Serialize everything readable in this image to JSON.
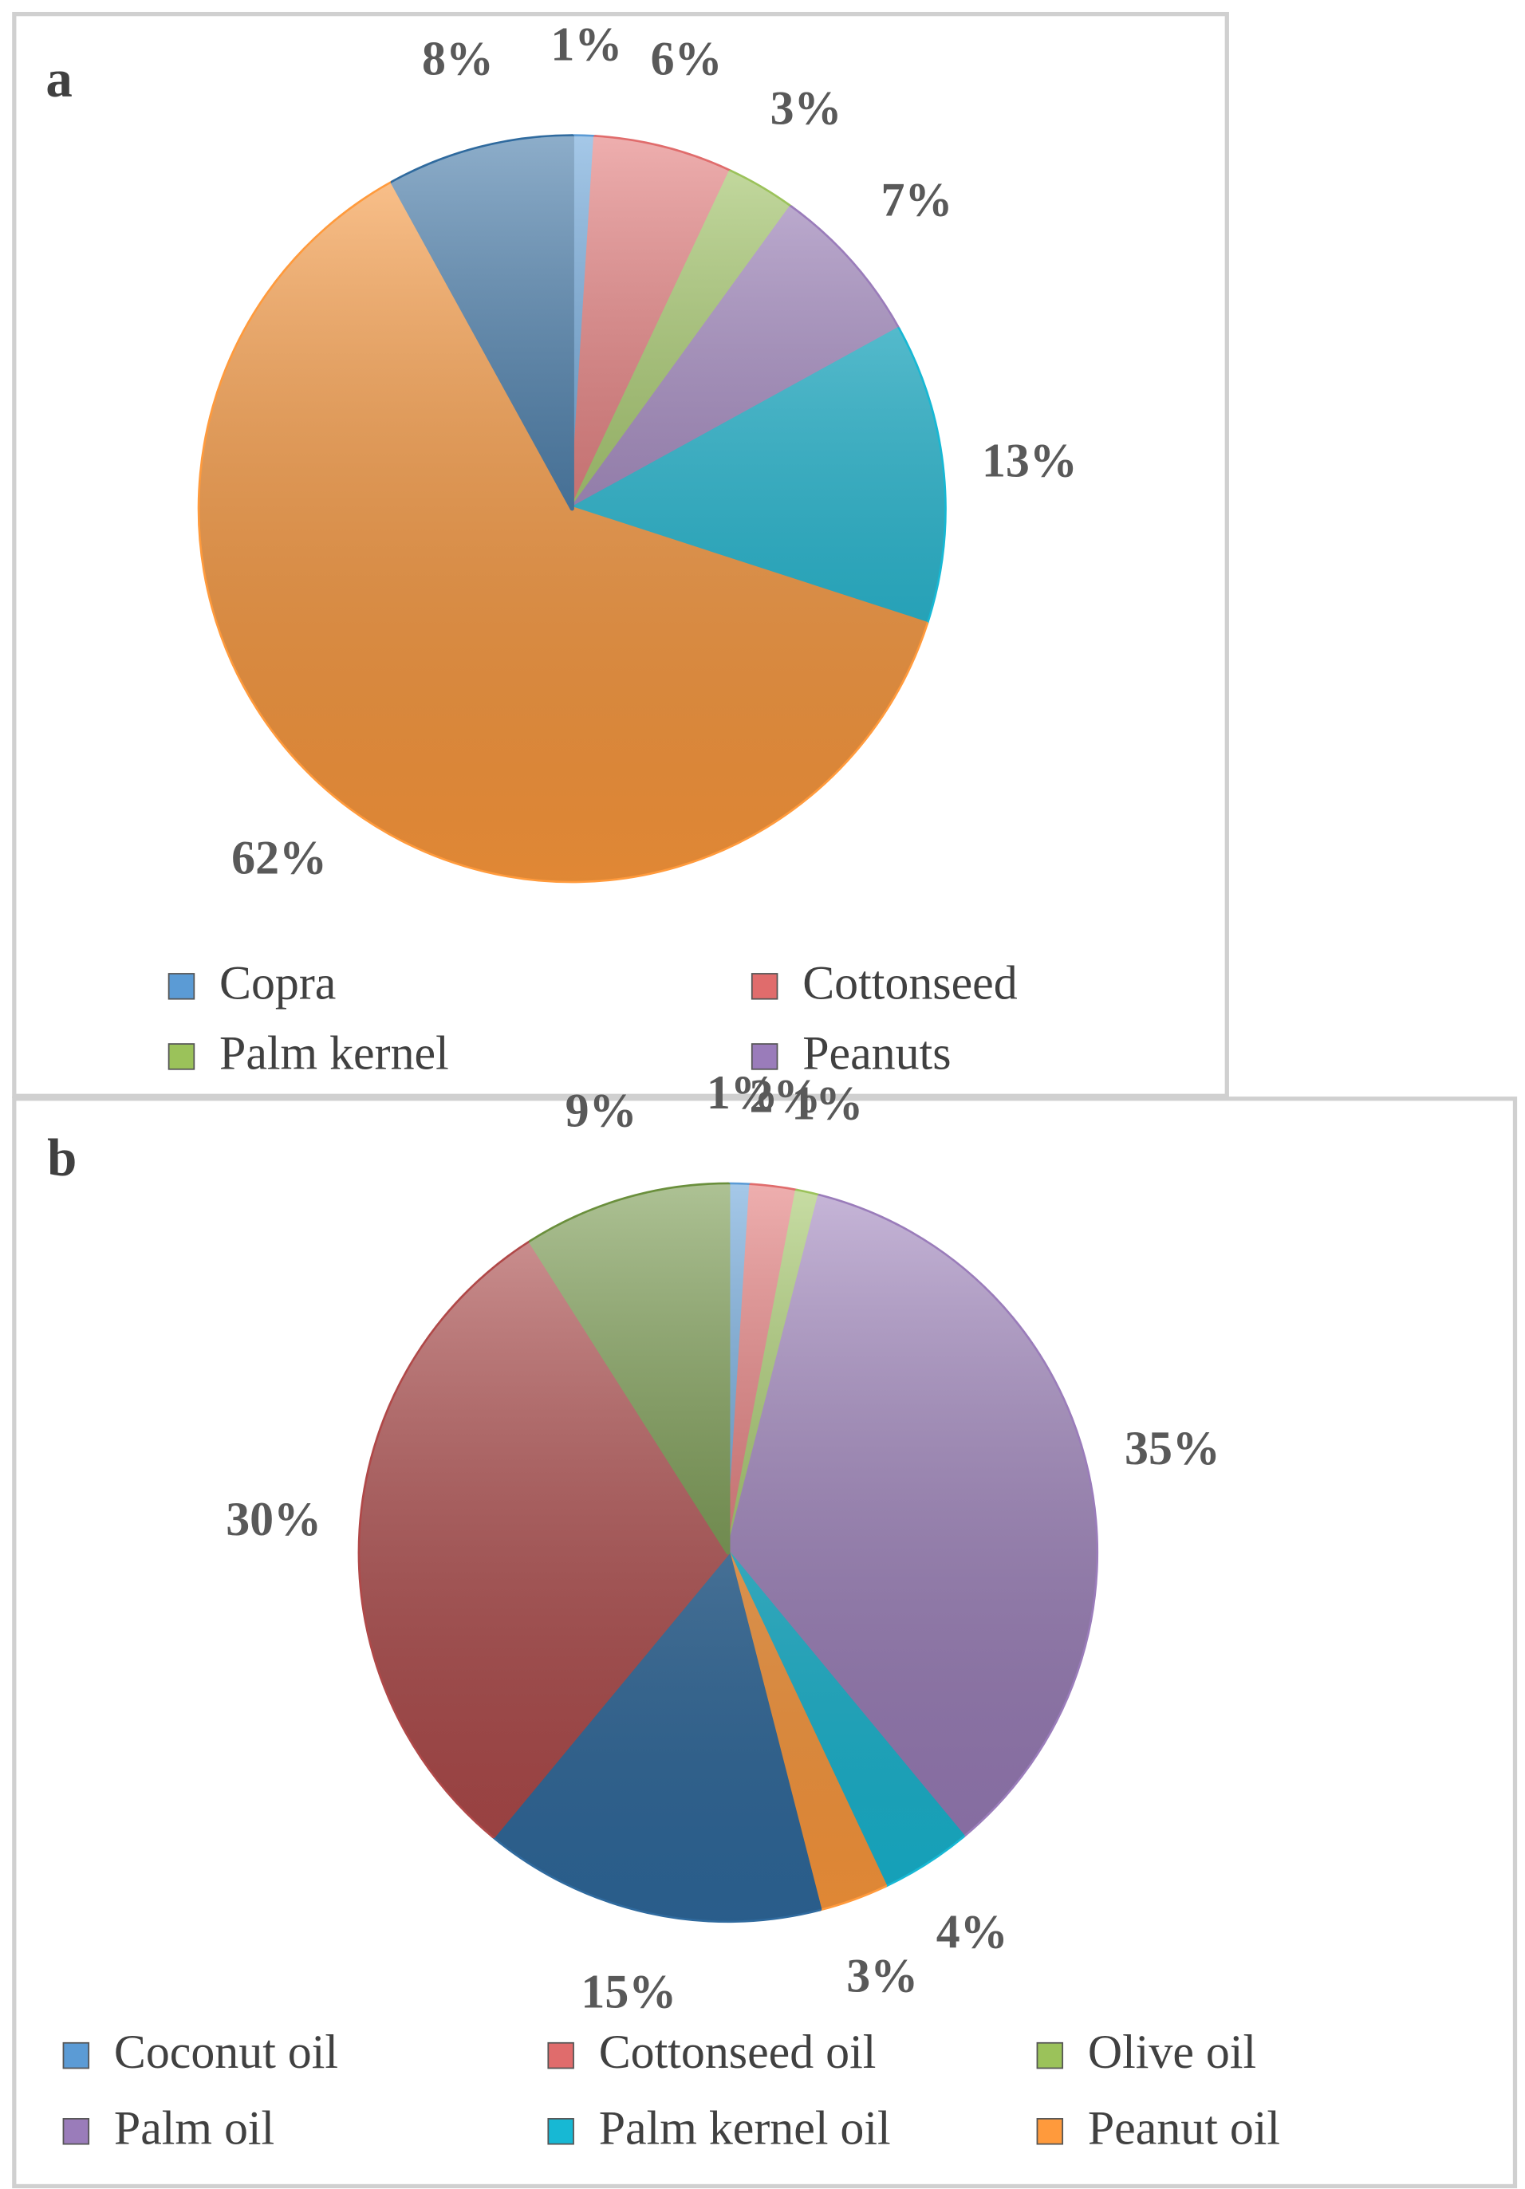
{
  "chart_data": [
    {
      "type": "pie",
      "title": "a",
      "categories": [
        "Copra",
        "Cottonseed",
        "Palm kernel",
        "Peanuts",
        null,
        null,
        null
      ],
      "values": [
        1,
        6,
        3,
        7,
        13,
        62,
        8
      ],
      "value_labels": [
        "1%",
        "6%",
        "3%",
        "7%",
        "13%",
        "62%",
        "8%"
      ],
      "colors": [
        "#5b9bd5",
        "#e06c6c",
        "#9bc25a",
        "#9a7cba",
        "#17b8d4",
        "#ff9a3c",
        "#2f6a9e"
      ]
    },
    {
      "type": "pie",
      "title": "b",
      "categories": [
        "Coconut oil",
        "Cottonseed oil",
        "Olive oil",
        "Palm oil",
        "Palm kernel oil",
        "Peanut oil",
        null,
        null,
        null
      ],
      "values": [
        1,
        2,
        1,
        35,
        4,
        3,
        15,
        30,
        9
      ],
      "value_labels": [
        "1%",
        "2%",
        "1%",
        "35%",
        "4%",
        "3%",
        "15%",
        "30%",
        "9%"
      ],
      "colors": [
        "#5b9bd5",
        "#e06c6c",
        "#9bc25a",
        "#9a7cba",
        "#17b8d4",
        "#ff9a3c",
        "#2f6a9e",
        "#b04848",
        "#6a8f3c"
      ]
    }
  ]
}
